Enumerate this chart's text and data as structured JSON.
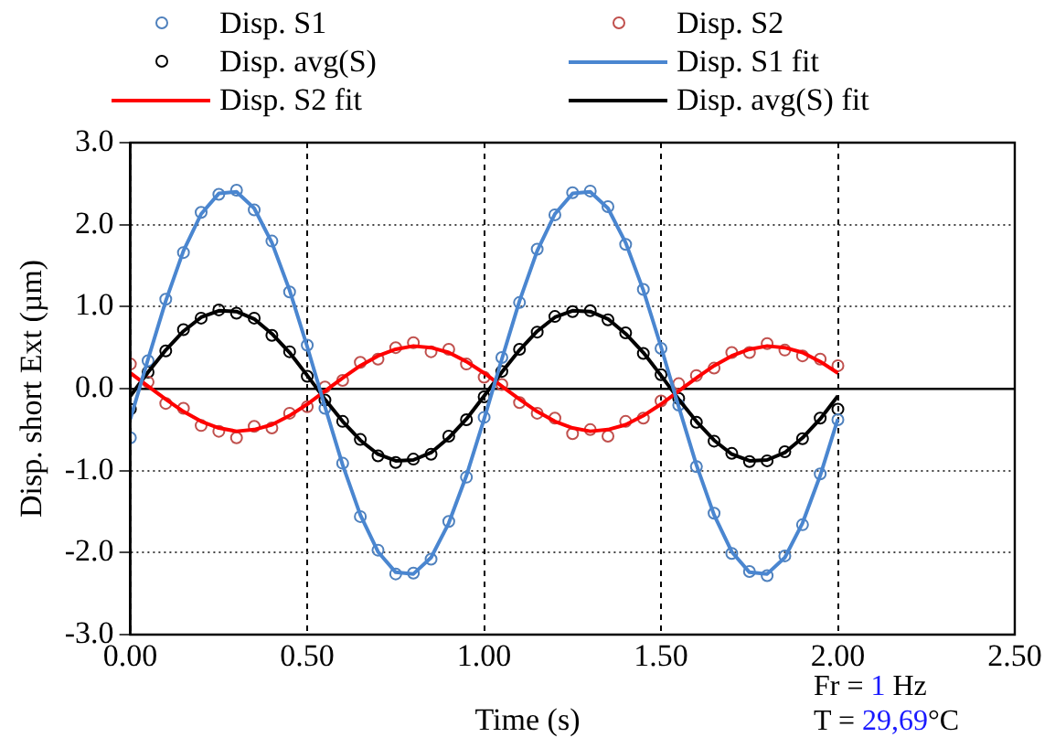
{
  "chart_data": {
    "type": "scatter",
    "xlabel": "Time (s)",
    "ylabel": "Disp. short Ext (µm)",
    "xlim": [
      0,
      2.5
    ],
    "ylim": [
      -3,
      3
    ],
    "xticks": [
      {
        "value": 0,
        "label": "0.00"
      },
      {
        "value": 0.5,
        "label": "0.50"
      },
      {
        "value": 1,
        "label": "1.00"
      },
      {
        "value": 1.5,
        "label": "1.50"
      },
      {
        "value": 2,
        "label": "2.00"
      },
      {
        "value": 2.5,
        "label": "2.50"
      }
    ],
    "yticks": [
      {
        "value": -3,
        "label": "-3.0"
      },
      {
        "value": -2,
        "label": "-2.0"
      },
      {
        "value": -1,
        "label": "-1.0"
      },
      {
        "value": 0,
        "label": "0.0"
      },
      {
        "value": 1,
        "label": "1.0"
      },
      {
        "value": 2,
        "label": "2.0"
      },
      {
        "value": 3,
        "label": "3.0"
      }
    ],
    "grid": true,
    "legend": "top",
    "marker": "circle",
    "x": [
      0,
      0.05,
      0.1,
      0.15,
      0.2,
      0.25,
      0.3,
      0.35,
      0.4,
      0.45,
      0.5,
      0.55,
      0.6,
      0.65,
      0.7,
      0.75,
      0.8,
      0.85,
      0.9,
      0.95,
      1,
      1.05,
      1.1,
      1.15,
      1.2,
      1.25,
      1.3,
      1.35,
      1.4,
      1.45,
      1.5,
      1.55,
      1.6,
      1.65,
      1.7,
      1.75,
      1.8,
      1.85,
      1.9,
      1.95,
      2
    ],
    "series": [
      {
        "name": "Disp. S1",
        "type": "scatter",
        "color": "#4f81bd",
        "values": [
          -0.6,
          0.34,
          1.09,
          1.66,
          2.15,
          2.37,
          2.42,
          2.18,
          1.8,
          1.18,
          0.53,
          -0.24,
          -0.91,
          -1.56,
          -1.97,
          -2.26,
          -2.25,
          -2.08,
          -1.62,
          -1.08,
          -0.35,
          0.38,
          1.05,
          1.7,
          2.12,
          2.39,
          2.41,
          2.22,
          1.76,
          1.21,
          0.49,
          -0.2,
          -0.95,
          -1.52,
          -2.01,
          -2.23,
          -2.28,
          -2.04,
          -1.66,
          -1.04,
          -0.38
        ]
      },
      {
        "name": "Disp. S2",
        "type": "scatter",
        "color": "#c0504d",
        "values": [
          0.3,
          0.08,
          -0.18,
          -0.24,
          -0.45,
          -0.52,
          -0.6,
          -0.46,
          -0.48,
          -0.3,
          -0.22,
          0.02,
          0.1,
          0.32,
          0.36,
          0.5,
          0.56,
          0.45,
          0.48,
          0.3,
          0.14,
          0.05,
          -0.17,
          -0.3,
          -0.36,
          -0.55,
          -0.5,
          -0.58,
          -0.4,
          -0.36,
          -0.15,
          0.06,
          0.16,
          0.25,
          0.44,
          0.44,
          0.55,
          0.47,
          0.4,
          0.36,
          0.28
        ]
      },
      {
        "name": "Disp. avg(S)",
        "type": "scatter",
        "color": "#000000",
        "values": [
          -0.25,
          0.2,
          0.46,
          0.72,
          0.86,
          0.96,
          0.92,
          0.86,
          0.65,
          0.45,
          0.15,
          -0.14,
          -0.4,
          -0.62,
          -0.82,
          -0.9,
          -0.86,
          -0.8,
          -0.58,
          -0.38,
          -0.1,
          0.21,
          0.48,
          0.69,
          0.88,
          0.94,
          0.95,
          0.84,
          0.68,
          0.43,
          0.17,
          -0.12,
          -0.41,
          -0.64,
          -0.79,
          -0.89,
          -0.88,
          -0.77,
          -0.61,
          -0.36,
          -0.25
        ]
      },
      {
        "name": "Disp. S1 fit",
        "type": "line",
        "marker": "none",
        "color": "#4a86d0",
        "values": [
          -0.37,
          0.36,
          1.07,
          1.68,
          2.13,
          2.38,
          2.4,
          2.2,
          1.78,
          1.2,
          0.51,
          -0.22,
          -0.93,
          -1.54,
          -1.99,
          -2.24,
          -2.26,
          -2.06,
          -1.64,
          -1.06,
          -0.37,
          0.36,
          1.07,
          1.68,
          2.13,
          2.38,
          2.4,
          2.2,
          1.78,
          1.2,
          0.51,
          -0.22,
          -0.93,
          -1.54,
          -1.99,
          -2.24,
          -2.26,
          -2.06,
          -1.64,
          -1.06,
          -0.37
        ]
      },
      {
        "name": "Disp. S2 fit",
        "type": "line",
        "marker": "none",
        "color": "#ff0000",
        "values": [
          0.19,
          0.03,
          -0.13,
          -0.28,
          -0.4,
          -0.48,
          -0.52,
          -0.5,
          -0.44,
          -0.33,
          -0.19,
          -0.03,
          0.13,
          0.28,
          0.4,
          0.48,
          0.52,
          0.5,
          0.44,
          0.33,
          0.19,
          0.03,
          -0.13,
          -0.28,
          -0.4,
          -0.48,
          -0.52,
          -0.5,
          -0.44,
          -0.33,
          -0.19,
          -0.03,
          0.13,
          0.28,
          0.4,
          0.48,
          0.52,
          0.5,
          0.44,
          0.33,
          0.19
        ]
      },
      {
        "name": "Disp. avg(S) fit",
        "type": "line",
        "marker": "none",
        "color": "#000000",
        "values": [
          -0.09,
          0.2,
          0.47,
          0.7,
          0.87,
          0.95,
          0.94,
          0.85,
          0.67,
          0.44,
          0.16,
          -0.13,
          -0.4,
          -0.63,
          -0.8,
          -0.88,
          -0.87,
          -0.78,
          -0.6,
          -0.37,
          -0.09,
          0.2,
          0.47,
          0.7,
          0.87,
          0.95,
          0.94,
          0.85,
          0.67,
          0.44,
          0.16,
          -0.13,
          -0.4,
          -0.63,
          -0.8,
          -0.88,
          -0.87,
          -0.78,
          -0.6,
          -0.37,
          -0.09
        ]
      }
    ],
    "annotations": [
      "Fr = 1 Hz",
      "T = 29,69°C"
    ]
  }
}
